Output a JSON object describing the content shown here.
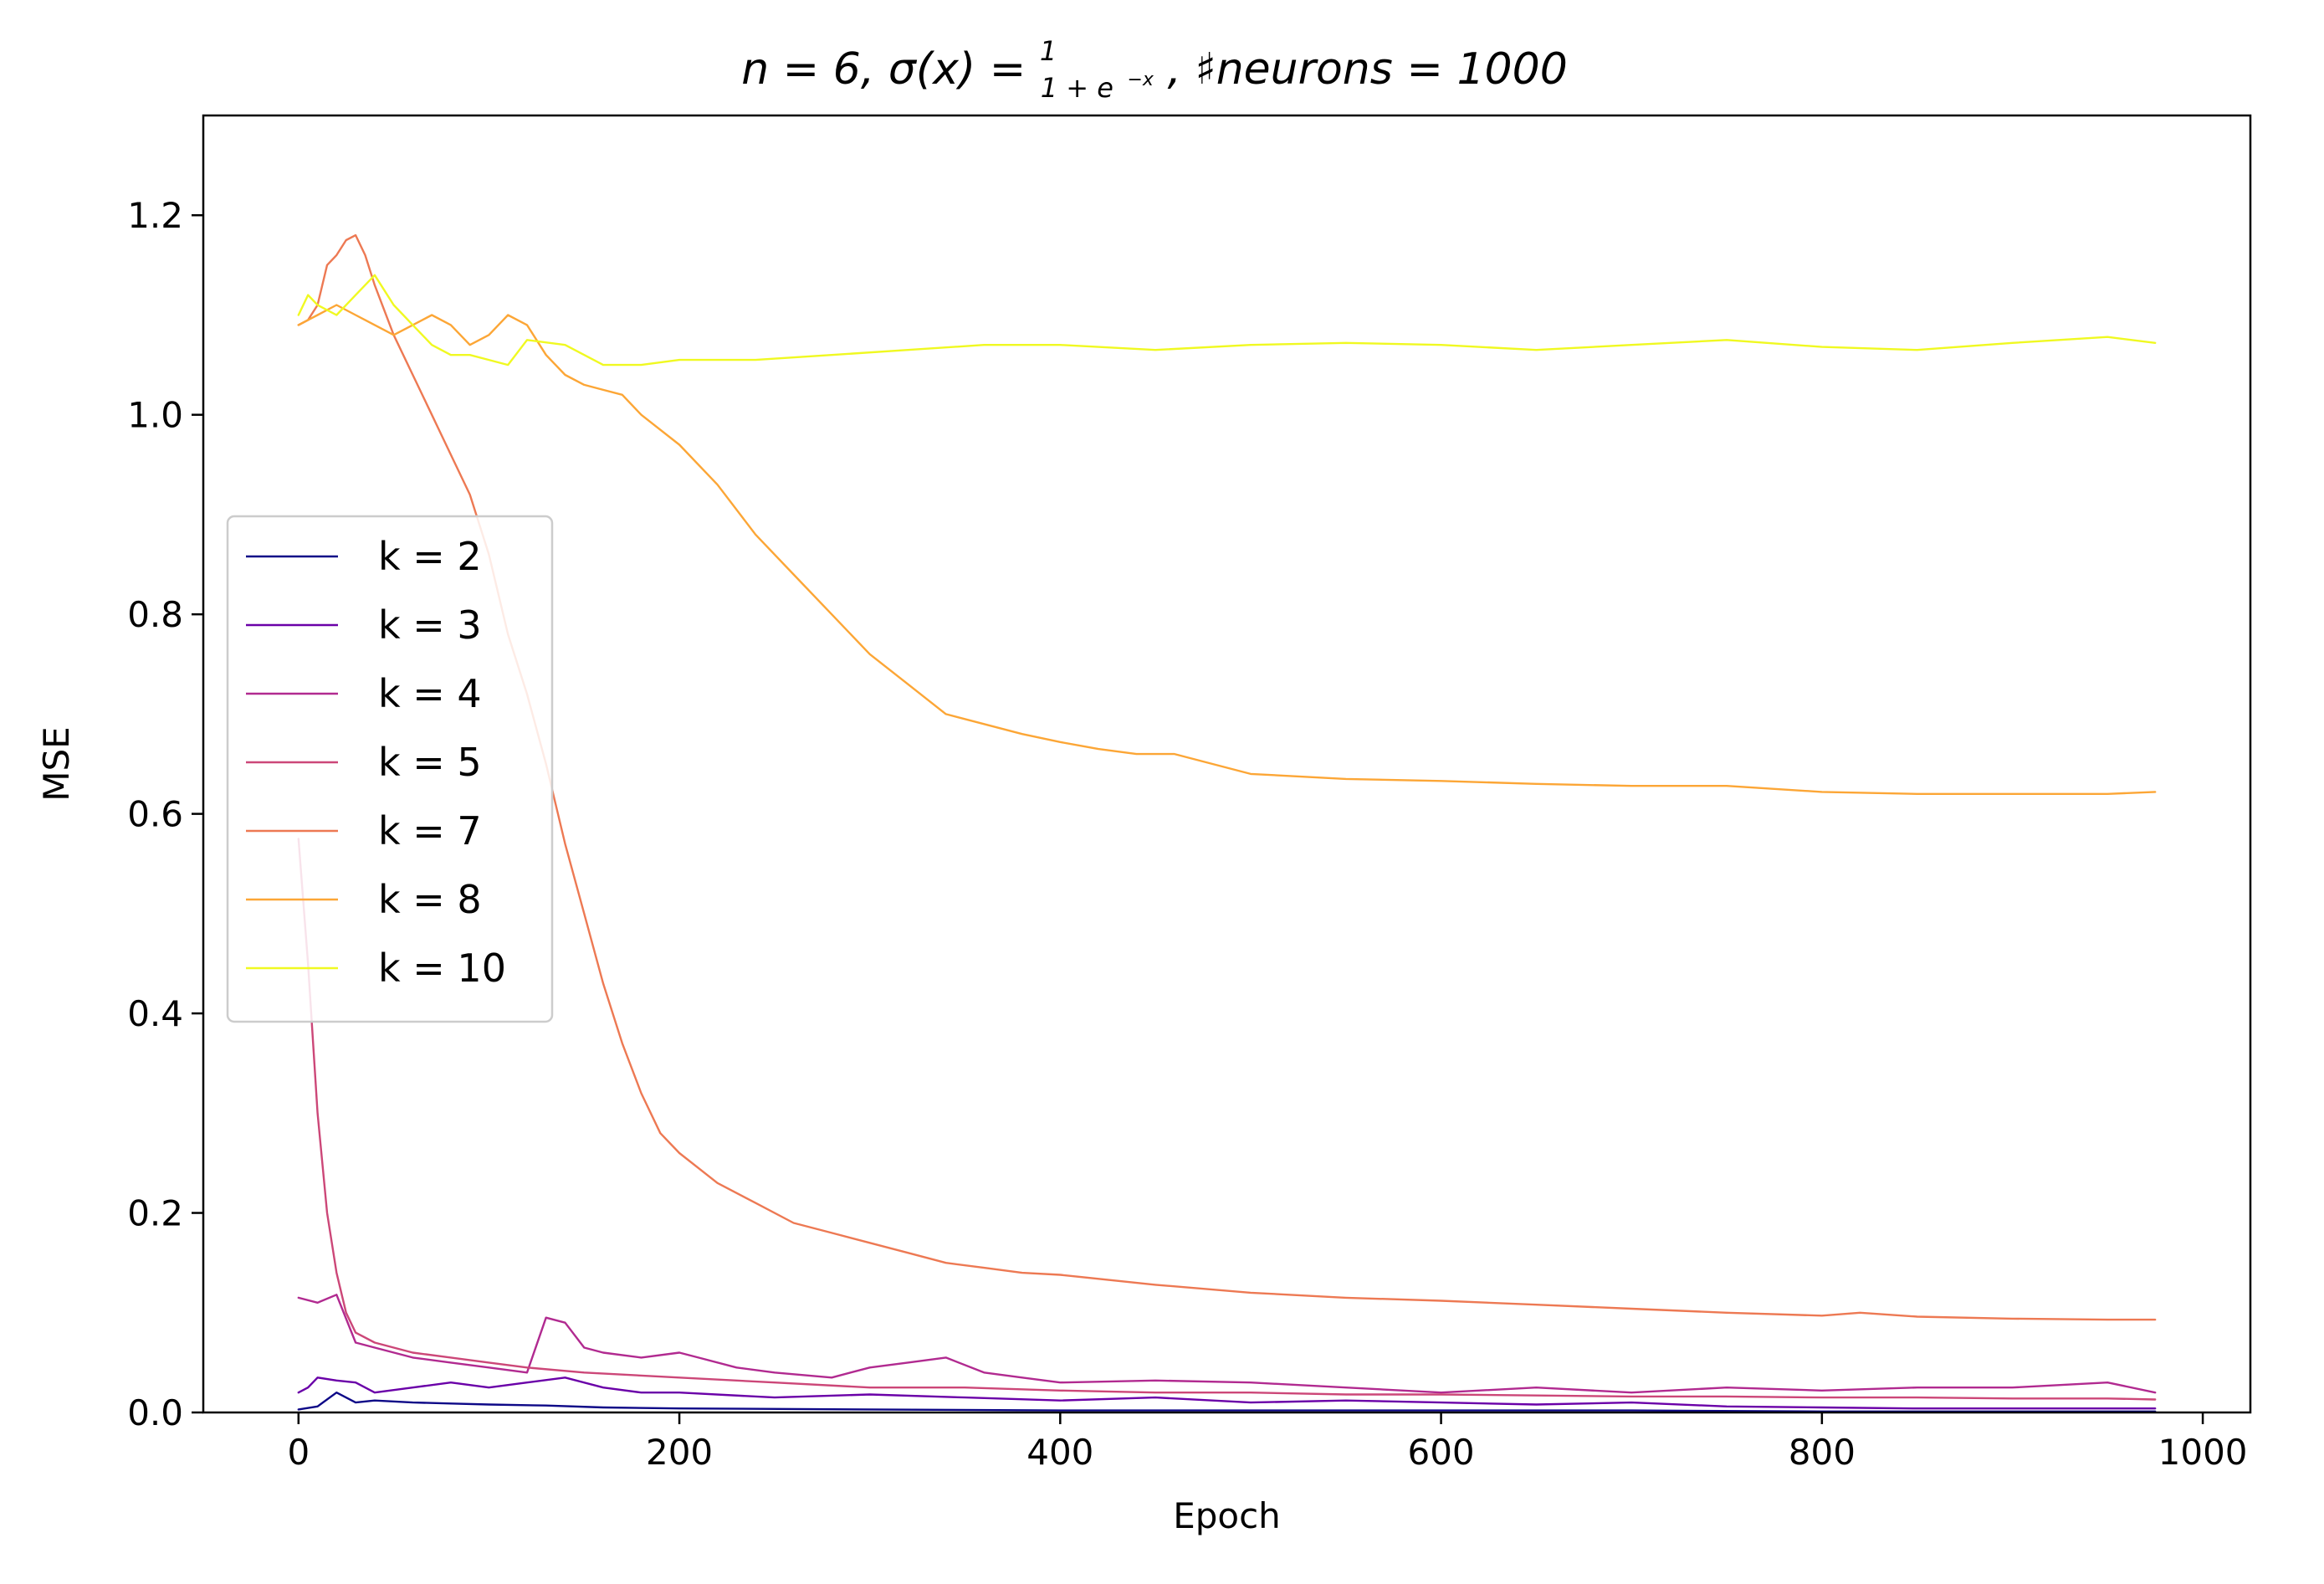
{
  "chart_data": {
    "type": "line",
    "title_parts": {
      "pre": "n = 6, σ(x) = ",
      "frac_num": "1",
      "frac_den": "1 + e",
      "frac_exp": "−x",
      "post": ", ♯neurons = 1000"
    },
    "xlabel": "Epoch",
    "ylabel": "MSE",
    "xlim": [
      -50,
      1025
    ],
    "ylim": [
      0.0,
      1.3
    ],
    "xticks": [
      0,
      200,
      400,
      600,
      800,
      1000
    ],
    "xtick_labels": [
      "0",
      "200",
      "400",
      "600",
      "800",
      "1000"
    ],
    "yticks": [
      0.0,
      0.2,
      0.4,
      0.6,
      0.8,
      1.0,
      1.2
    ],
    "ytick_labels": [
      "0.0",
      "0.2",
      "0.4",
      "0.6",
      "0.8",
      "1.0",
      "1.2"
    ],
    "grid": false,
    "legend_position": "center-left",
    "series": [
      {
        "name": "k = 2",
        "color": "#0d0887",
        "x": [
          0,
          10,
          20,
          30,
          40,
          60,
          80,
          100,
          130,
          160,
          200,
          300,
          400,
          500,
          600,
          700,
          800,
          900,
          975
        ],
        "y": [
          0.003,
          0.006,
          0.02,
          0.01,
          0.012,
          0.01,
          0.009,
          0.008,
          0.007,
          0.005,
          0.004,
          0.003,
          0.002,
          0.002,
          0.002,
          0.002,
          0.001,
          0.001,
          0.001
        ]
      },
      {
        "name": "k = 3",
        "color": "#6a00a8",
        "x": [
          0,
          5,
          10,
          20,
          30,
          40,
          60,
          80,
          100,
          120,
          140,
          160,
          180,
          200,
          250,
          300,
          350,
          400,
          450,
          500,
          550,
          600,
          650,
          700,
          750,
          800,
          850,
          900,
          975
        ],
        "y": [
          0.02,
          0.025,
          0.035,
          0.032,
          0.03,
          0.02,
          0.025,
          0.03,
          0.025,
          0.03,
          0.035,
          0.025,
          0.02,
          0.02,
          0.015,
          0.018,
          0.015,
          0.012,
          0.015,
          0.01,
          0.012,
          0.01,
          0.008,
          0.01,
          0.006,
          0.005,
          0.004,
          0.004,
          0.004
        ]
      },
      {
        "name": "k = 4",
        "color": "#b12a90",
        "x": [
          0,
          10,
          20,
          30,
          40,
          60,
          80,
          100,
          120,
          130,
          140,
          150,
          160,
          180,
          200,
          210,
          230,
          250,
          280,
          300,
          320,
          340,
          360,
          380,
          400,
          450,
          500,
          550,
          600,
          650,
          700,
          750,
          800,
          850,
          900,
          950,
          975
        ],
        "y": [
          0.115,
          0.11,
          0.118,
          0.07,
          0.065,
          0.055,
          0.05,
          0.045,
          0.04,
          0.095,
          0.09,
          0.065,
          0.06,
          0.055,
          0.06,
          0.055,
          0.045,
          0.04,
          0.035,
          0.045,
          0.05,
          0.055,
          0.04,
          0.035,
          0.03,
          0.032,
          0.03,
          0.025,
          0.02,
          0.025,
          0.02,
          0.025,
          0.022,
          0.025,
          0.025,
          0.03,
          0.02
        ]
      },
      {
        "name": "k = 5",
        "color": "#cc4778",
        "x": [
          0,
          5,
          10,
          15,
          20,
          25,
          30,
          40,
          50,
          60,
          80,
          100,
          120,
          150,
          200,
          250,
          300,
          350,
          400,
          450,
          500,
          550,
          600,
          650,
          700,
          750,
          800,
          850,
          900,
          950,
          975
        ],
        "y": [
          0.575,
          0.45,
          0.3,
          0.2,
          0.14,
          0.1,
          0.08,
          0.07,
          0.065,
          0.06,
          0.055,
          0.05,
          0.045,
          0.04,
          0.035,
          0.03,
          0.025,
          0.025,
          0.022,
          0.02,
          0.02,
          0.018,
          0.018,
          0.017,
          0.016,
          0.016,
          0.015,
          0.015,
          0.014,
          0.014,
          0.013
        ]
      },
      {
        "name": "k = 7",
        "color": "#ed7953",
        "x": [
          0,
          5,
          10,
          15,
          20,
          25,
          30,
          35,
          40,
          50,
          60,
          70,
          80,
          90,
          100,
          110,
          120,
          130,
          140,
          150,
          160,
          170,
          180,
          190,
          200,
          220,
          240,
          260,
          280,
          300,
          320,
          340,
          360,
          380,
          400,
          450,
          500,
          550,
          600,
          650,
          700,
          750,
          800,
          820,
          850,
          900,
          950,
          975
        ],
        "y": [
          1.09,
          1.095,
          1.11,
          1.15,
          1.16,
          1.175,
          1.18,
          1.16,
          1.13,
          1.08,
          1.04,
          1.0,
          0.96,
          0.92,
          0.86,
          0.78,
          0.72,
          0.65,
          0.57,
          0.5,
          0.43,
          0.37,
          0.32,
          0.28,
          0.26,
          0.23,
          0.21,
          0.19,
          0.18,
          0.17,
          0.16,
          0.15,
          0.145,
          0.14,
          0.138,
          0.128,
          0.12,
          0.115,
          0.112,
          0.108,
          0.104,
          0.1,
          0.097,
          0.1,
          0.096,
          0.094,
          0.093,
          0.093
        ]
      },
      {
        "name": "k = 8",
        "color": "#fca636",
        "x": [
          0,
          10,
          20,
          30,
          40,
          50,
          60,
          70,
          80,
          90,
          100,
          110,
          120,
          130,
          140,
          150,
          160,
          170,
          180,
          200,
          220,
          240,
          260,
          280,
          300,
          320,
          340,
          360,
          380,
          400,
          420,
          440,
          460,
          480,
          500,
          550,
          600,
          650,
          700,
          750,
          800,
          850,
          900,
          950,
          975
        ],
        "y": [
          1.09,
          1.1,
          1.11,
          1.1,
          1.09,
          1.08,
          1.09,
          1.1,
          1.09,
          1.07,
          1.08,
          1.1,
          1.09,
          1.06,
          1.04,
          1.03,
          1.025,
          1.02,
          1.0,
          0.97,
          0.93,
          0.88,
          0.84,
          0.8,
          0.76,
          0.73,
          0.7,
          0.69,
          0.68,
          0.672,
          0.665,
          0.66,
          0.66,
          0.65,
          0.64,
          0.635,
          0.633,
          0.63,
          0.628,
          0.628,
          0.622,
          0.62,
          0.62,
          0.62,
          0.622
        ]
      },
      {
        "name": "k = 10",
        "color": "#f0f921",
        "x": [
          0,
          5,
          10,
          20,
          30,
          40,
          50,
          60,
          70,
          80,
          90,
          100,
          110,
          120,
          140,
          160,
          180,
          200,
          240,
          280,
          320,
          360,
          400,
          450,
          500,
          550,
          600,
          650,
          700,
          750,
          800,
          850,
          900,
          950,
          975
        ],
        "y": [
          1.1,
          1.12,
          1.11,
          1.1,
          1.12,
          1.14,
          1.11,
          1.09,
          1.07,
          1.06,
          1.06,
          1.055,
          1.05,
          1.075,
          1.07,
          1.05,
          1.05,
          1.055,
          1.055,
          1.06,
          1.065,
          1.07,
          1.07,
          1.065,
          1.07,
          1.072,
          1.07,
          1.065,
          1.07,
          1.075,
          1.068,
          1.065,
          1.072,
          1.078,
          1.072
        ]
      }
    ]
  }
}
